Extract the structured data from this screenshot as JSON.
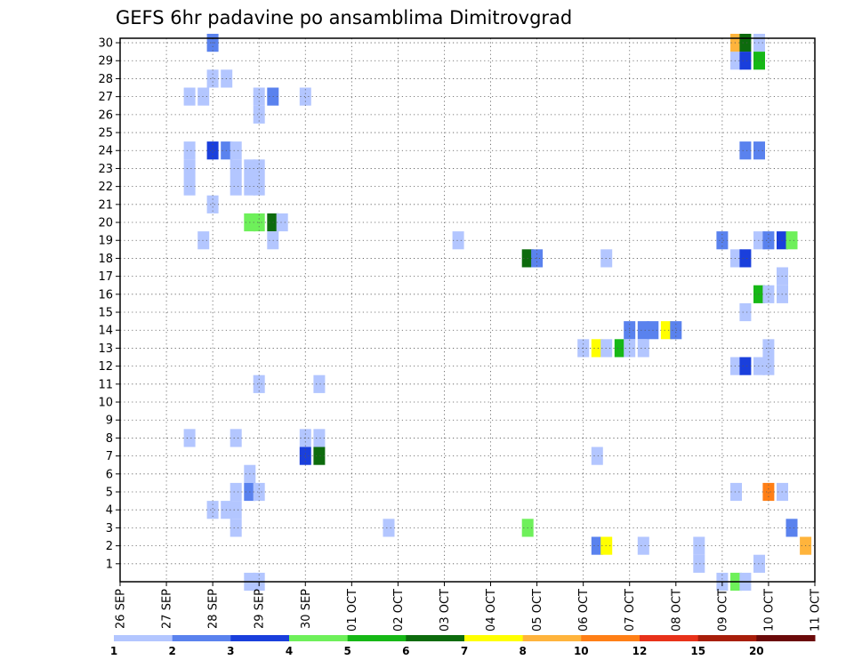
{
  "chart_data": {
    "type": "heatmap",
    "title": "GEFS 6hr padavine po ansamblima Dimitrovgrad",
    "xlabel": "",
    "ylabel": "",
    "x_tick_labels": [
      "26 SEP",
      "27 SEP",
      "28 SEP",
      "29 SEP",
      "30 SEP",
      "01 OCT",
      "02 OCT",
      "03 OCT",
      "04 OCT",
      "05 OCT",
      "06 OCT",
      "07 OCT",
      "08 OCT",
      "09 OCT",
      "10 OCT",
      "11 OCT"
    ],
    "y_tick_labels": [
      "1",
      "2",
      "3",
      "4",
      "5",
      "6",
      "7",
      "8",
      "9",
      "10",
      "11",
      "12",
      "13",
      "14",
      "15",
      "16",
      "17",
      "18",
      "19",
      "20",
      "21",
      "22",
      "23",
      "24",
      "25",
      "26",
      "27",
      "28",
      "29",
      "30"
    ],
    "x_range_days": [
      0,
      15
    ],
    "y_range": [
      0,
      30
    ],
    "grid": true,
    "legend_position": "bottom",
    "legend": {
      "labels": [
        "1",
        "2",
        "3",
        "4",
        "5",
        "6",
        "7",
        "8",
        "10",
        "12",
        "15",
        "20"
      ],
      "colors": [
        "#b3c6ff",
        "#5a82ee",
        "#1a3fdc",
        "#6ef05a",
        "#16b816",
        "#0d6b0d",
        "#ffff00",
        "#ffb43c",
        "#ff7f16",
        "#e8321a",
        "#a81e0a",
        "#6b0a0a"
      ]
    },
    "cells": [
      [
        2.0,
        30,
        2
      ],
      [
        13.3,
        30,
        9
      ],
      [
        13.5,
        30,
        6
      ],
      [
        13.8,
        30,
        1
      ],
      [
        13.3,
        29,
        1
      ],
      [
        13.5,
        29,
        3
      ],
      [
        13.8,
        29,
        5
      ],
      [
        2.0,
        28,
        1
      ],
      [
        2.3,
        28,
        1
      ],
      [
        1.5,
        27,
        1
      ],
      [
        1.8,
        27,
        1
      ],
      [
        3.0,
        27,
        1
      ],
      [
        3.3,
        27,
        2
      ],
      [
        4.0,
        27,
        1
      ],
      [
        3.0,
        26,
        1
      ],
      [
        1.5,
        24,
        1
      ],
      [
        2.0,
        24,
        3
      ],
      [
        2.3,
        24,
        2
      ],
      [
        2.5,
        24,
        1
      ],
      [
        13.5,
        24,
        2
      ],
      [
        13.8,
        24,
        2
      ],
      [
        1.5,
        23,
        1
      ],
      [
        2.5,
        23,
        1
      ],
      [
        2.8,
        23,
        1
      ],
      [
        3.0,
        23,
        1
      ],
      [
        1.5,
        22,
        1
      ],
      [
        2.5,
        22,
        1
      ],
      [
        2.8,
        22,
        1
      ],
      [
        3.0,
        22,
        1
      ],
      [
        2.0,
        21,
        1
      ],
      [
        2.8,
        20,
        4
      ],
      [
        3.0,
        20,
        4
      ],
      [
        3.3,
        20,
        6
      ],
      [
        3.5,
        20,
        1
      ],
      [
        1.8,
        19,
        1
      ],
      [
        3.3,
        19,
        1
      ],
      [
        7.3,
        19,
        1
      ],
      [
        13.0,
        19,
        2
      ],
      [
        13.8,
        19,
        1
      ],
      [
        14.0,
        19,
        2
      ],
      [
        14.3,
        19,
        3
      ],
      [
        14.5,
        19,
        4
      ],
      [
        8.8,
        18,
        6
      ],
      [
        9.0,
        18,
        2
      ],
      [
        10.5,
        18,
        1
      ],
      [
        13.3,
        18,
        1
      ],
      [
        13.5,
        18,
        3
      ],
      [
        14.3,
        17,
        1
      ],
      [
        13.8,
        16,
        5
      ],
      [
        14.0,
        16,
        1
      ],
      [
        14.3,
        16,
        1
      ],
      [
        13.5,
        15,
        1
      ],
      [
        11.0,
        14,
        2
      ],
      [
        11.3,
        14,
        2
      ],
      [
        11.5,
        14,
        2
      ],
      [
        11.8,
        14,
        7
      ],
      [
        12.0,
        14,
        2
      ],
      [
        10.0,
        13,
        1
      ],
      [
        10.3,
        13,
        7
      ],
      [
        10.5,
        13,
        1
      ],
      [
        10.8,
        13,
        5
      ],
      [
        11.0,
        13,
        1
      ],
      [
        11.3,
        13,
        1
      ],
      [
        14.0,
        13,
        1
      ],
      [
        13.3,
        12,
        1
      ],
      [
        13.5,
        12,
        3
      ],
      [
        13.8,
        12,
        1
      ],
      [
        14.0,
        12,
        1
      ],
      [
        3.0,
        11,
        1
      ],
      [
        4.3,
        11,
        1
      ],
      [
        1.5,
        8,
        1
      ],
      [
        2.5,
        8,
        1
      ],
      [
        4.0,
        8,
        1
      ],
      [
        4.3,
        8,
        1
      ],
      [
        4.0,
        7,
        3
      ],
      [
        4.3,
        7,
        6
      ],
      [
        10.3,
        7,
        1
      ],
      [
        2.8,
        6,
        1
      ],
      [
        2.5,
        5,
        1
      ],
      [
        2.8,
        5,
        2
      ],
      [
        3.0,
        5,
        1
      ],
      [
        13.3,
        5,
        1
      ],
      [
        14.0,
        5,
        10
      ],
      [
        14.3,
        5,
        1
      ],
      [
        2.0,
        4,
        1
      ],
      [
        2.3,
        4,
        1
      ],
      [
        2.5,
        4,
        1
      ],
      [
        2.5,
        3,
        1
      ],
      [
        5.8,
        3,
        1
      ],
      [
        8.8,
        3,
        4
      ],
      [
        14.5,
        3,
        2
      ],
      [
        10.3,
        2,
        2
      ],
      [
        10.5,
        2,
        7
      ],
      [
        11.3,
        2,
        1
      ],
      [
        12.5,
        2,
        1
      ],
      [
        14.8,
        2,
        8
      ],
      [
        12.5,
        1,
        1
      ],
      [
        13.8,
        1,
        1
      ],
      [
        2.8,
        0,
        1
      ],
      [
        3.0,
        0,
        1
      ],
      [
        13.0,
        0,
        1
      ],
      [
        13.3,
        0,
        4
      ],
      [
        13.5,
        0,
        1
      ]
    ]
  }
}
